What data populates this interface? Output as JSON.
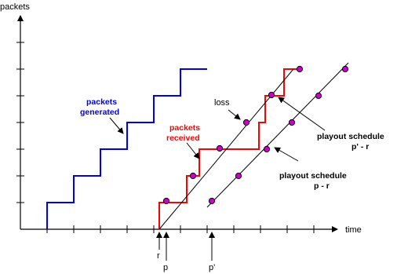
{
  "labels": {
    "y_axis": "packets",
    "x_axis": "time",
    "loss": "loss",
    "generated_1": "packets",
    "generated_2": "generated",
    "received_1": "packets",
    "received_2": "received",
    "sched_p_prime_1": "playout schedule",
    "sched_p_prime_2": "p' - r",
    "sched_p_1": "playout schedule",
    "sched_p_2": "p - r",
    "tick_r": "r",
    "tick_p": "p",
    "tick_p_prime": "p'"
  },
  "colors": {
    "axis": "#000000",
    "generated": "#0000ee",
    "received": "#ff0000",
    "schedule": "#000000",
    "marker_fill": "#cc00cc"
  }
}
